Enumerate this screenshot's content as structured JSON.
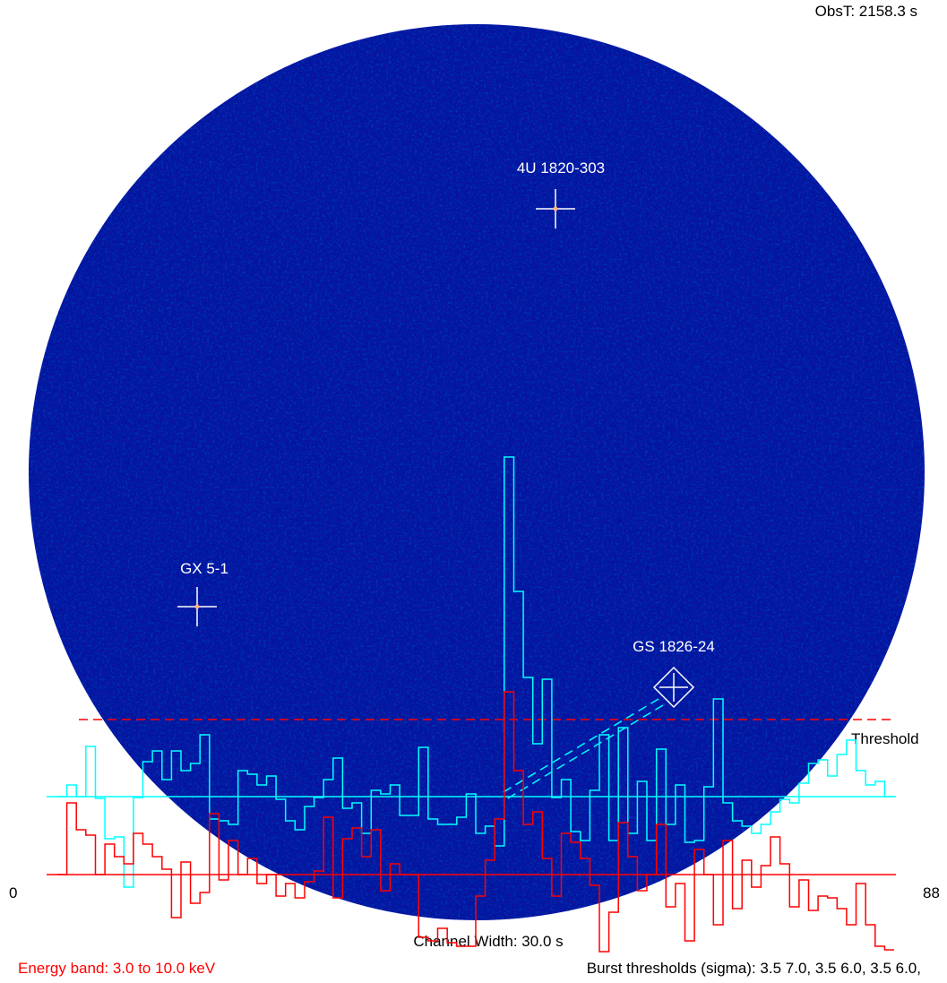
{
  "header": {
    "obs_time": "ObsT: 2158.3 s"
  },
  "sources": [
    {
      "label": "4U 1820-303"
    },
    {
      "label": "GX 5-1"
    },
    {
      "label": "GS 1826-24"
    }
  ],
  "light_curves": {
    "axis_start": "0",
    "axis_end": "88",
    "threshold_label": "Threshold",
    "threshold": 17.3,
    "series": [
      {
        "color": "#00ffff",
        "baseline": 8.7,
        "values": [
          8.7,
          10.0,
          8.7,
          14.3,
          8.5,
          4.0,
          4.2,
          -1.4,
          8.6,
          12.6,
          13.8,
          10.6,
          13.8,
          11.6,
          12.4,
          15.6,
          6.2,
          6.0,
          5.6,
          11.6,
          11.2,
          10.0,
          11.0,
          8.4,
          6.0,
          5.0,
          7.6,
          8.6,
          10.6,
          13.0,
          7.4,
          8.0,
          4.6,
          9.4,
          9.0,
          10.0,
          6.6,
          6.6,
          14.2,
          6.2,
          5.6,
          5.6,
          6.4,
          9.0,
          4.6,
          5.4,
          3.2,
          46.6,
          31.6,
          22.0,
          14.6,
          21.8,
          8.6,
          10.6,
          4.8,
          3.8,
          9.4,
          15.6,
          3.8,
          16.4,
          4.6,
          10.4,
          3.8,
          14.0,
          5.6,
          10.0,
          3.6,
          3.8,
          9.8,
          19.6,
          8.0,
          6.0,
          5.4,
          4.6,
          5.6,
          7.0,
          8.4,
          8.0,
          10.2,
          12.4,
          12.8,
          11.0,
          13.4,
          15.0,
          11.6,
          10.0,
          10.4,
          8.7
        ]
      },
      {
        "color": "#ff0000",
        "baseline": 0,
        "values": [
          0.0,
          8.0,
          5.0,
          4.4,
          0.0,
          3.4,
          2.0,
          1.2,
          4.6,
          3.4,
          2.0,
          0.6,
          -4.8,
          1.4,
          -3.2,
          -2.0,
          6.8,
          -0.6,
          3.8,
          0.0,
          1.8,
          -1.0,
          0.0,
          -2.4,
          -1.0,
          -2.6,
          -0.8,
          0.4,
          6.4,
          -2.6,
          4.0,
          5.2,
          2.0,
          5.0,
          -1.8,
          1.2,
          0.0,
          0.0,
          -7.0,
          -7.4,
          -6.0,
          -7.6,
          -8.0,
          -8.0,
          -2.4,
          1.6,
          6.2,
          20.4,
          11.6,
          5.6,
          7.0,
          1.8,
          -2.4,
          4.6,
          3.6,
          1.8,
          -1.2,
          -8.6,
          -4.2,
          5.8,
          2.0,
          -1.8,
          0.0,
          5.6,
          -3.6,
          -1.0,
          -7.4,
          2.8,
          0.0,
          -5.6,
          3.8,
          -3.8,
          1.6,
          -1.4,
          1.0,
          4.2,
          1.2,
          -3.6,
          -0.6,
          -4.0,
          -2.4,
          -2.6,
          -3.8,
          -5.6,
          -1.0,
          -5.6,
          -8.0,
          -8.4
        ]
      }
    ]
  },
  "footer": {
    "channel_width": "Channel Width: 30.0 s",
    "energy_band": "Energy band:  3.0 to 10.0 keV",
    "burst_thresholds": "Burst thresholds (sigma):  3.5  7.0,  3.5  6.0,  3.5  6.0,"
  }
}
